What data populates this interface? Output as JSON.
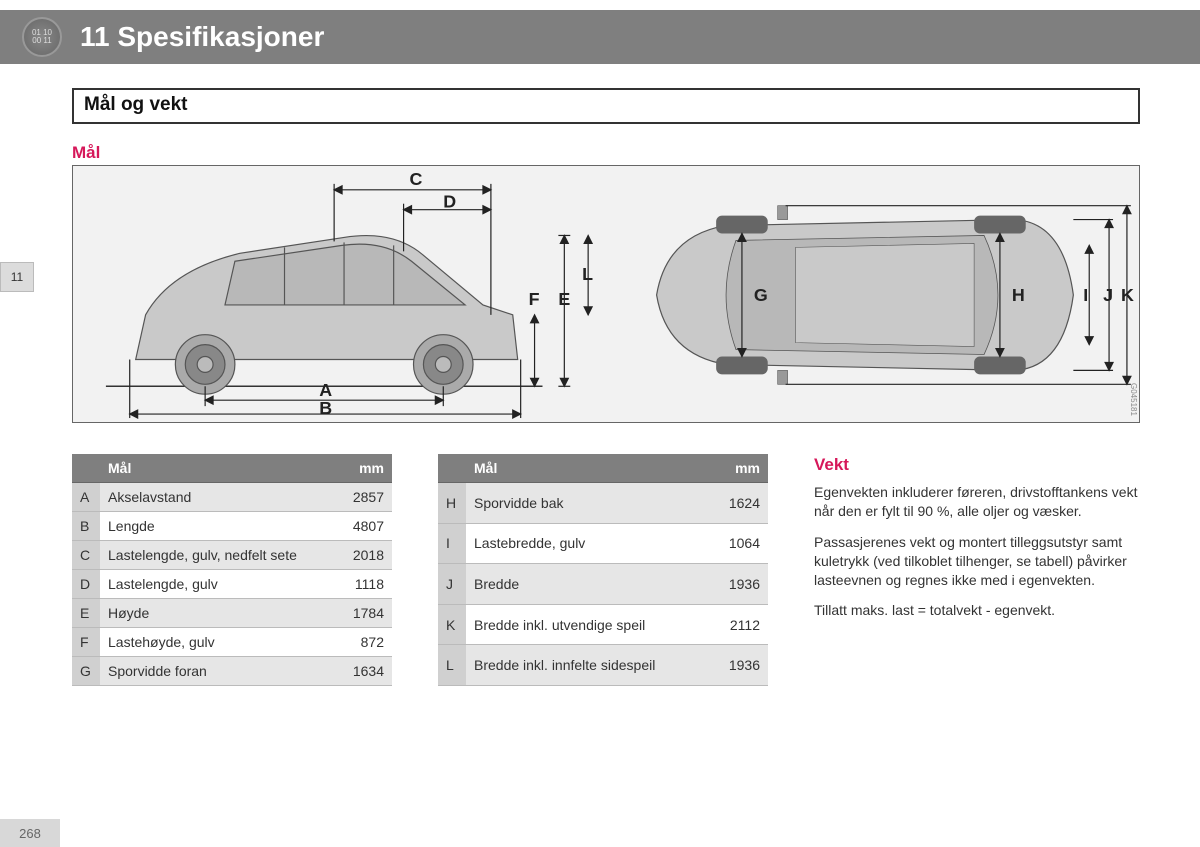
{
  "page_number": "268",
  "side_tab": "11",
  "header": {
    "icon_text_top": "01 10",
    "icon_text_bottom": "00 11",
    "title": "11 Spesifikasjoner"
  },
  "section_title": "Mål og vekt",
  "mal_heading": "Mål",
  "diagram": {
    "bg_color": "#f2f2f2",
    "line_color": "#333333",
    "vehicle_fill": "#c9c9c9",
    "vehicle_stroke": "#555555",
    "image_code": "G045181",
    "labels": [
      "A",
      "B",
      "C",
      "D",
      "E",
      "F",
      "G",
      "H",
      "I",
      "J",
      "K",
      "L"
    ]
  },
  "table1": {
    "headers": {
      "key": "",
      "label": "Mål",
      "val": "mm"
    },
    "rows": [
      {
        "key": "A",
        "label": "Akselavstand",
        "val": "2857"
      },
      {
        "key": "B",
        "label": "Lengde",
        "val": "4807"
      },
      {
        "key": "C",
        "label": "Lastelengde, gulv, nedfelt sete",
        "val": "2018"
      },
      {
        "key": "D",
        "label": "Lastelengde, gulv",
        "val": "1118"
      },
      {
        "key": "E",
        "label": "Høyde",
        "val": "1784"
      },
      {
        "key": "F",
        "label": "Lastehøyde, gulv",
        "val": "872"
      },
      {
        "key": "G",
        "label": "Sporvidde foran",
        "val": "1634"
      }
    ]
  },
  "table2": {
    "headers": {
      "key": "",
      "label": "Mål",
      "val": "mm"
    },
    "rows": [
      {
        "key": "H",
        "label": "Sporvidde bak",
        "val": "1624"
      },
      {
        "key": "I",
        "label": "Lastebredde, gulv",
        "val": "1064"
      },
      {
        "key": "J",
        "label": "Bredde",
        "val": "1936"
      },
      {
        "key": "K",
        "label": "Bredde inkl. utvendige speil",
        "val": "2112"
      },
      {
        "key": "L",
        "label": "Bredde inkl. innfelte sidespeil",
        "val": "1936"
      }
    ]
  },
  "vekt": {
    "heading": "Vekt",
    "p1": "Egenvekten inkluderer føreren, drivstofftankens vekt når den er fylt til 90 %, alle oljer og væsker.",
    "p2": "Passasjerenes vekt og montert tilleggsutstyr samt kuletrykk (ved tilkoblet tilhenger, se tabell) påvirker lasteevnen og regnes ikke med i egenvekten.",
    "p3": "Tillatt maks. last = totalvekt - egenvekt."
  },
  "colors": {
    "header_bg": "#7f7f7f",
    "accent": "#d6185a",
    "row_alt": "#e6e6e6",
    "key_bg": "#d0d0d0"
  }
}
